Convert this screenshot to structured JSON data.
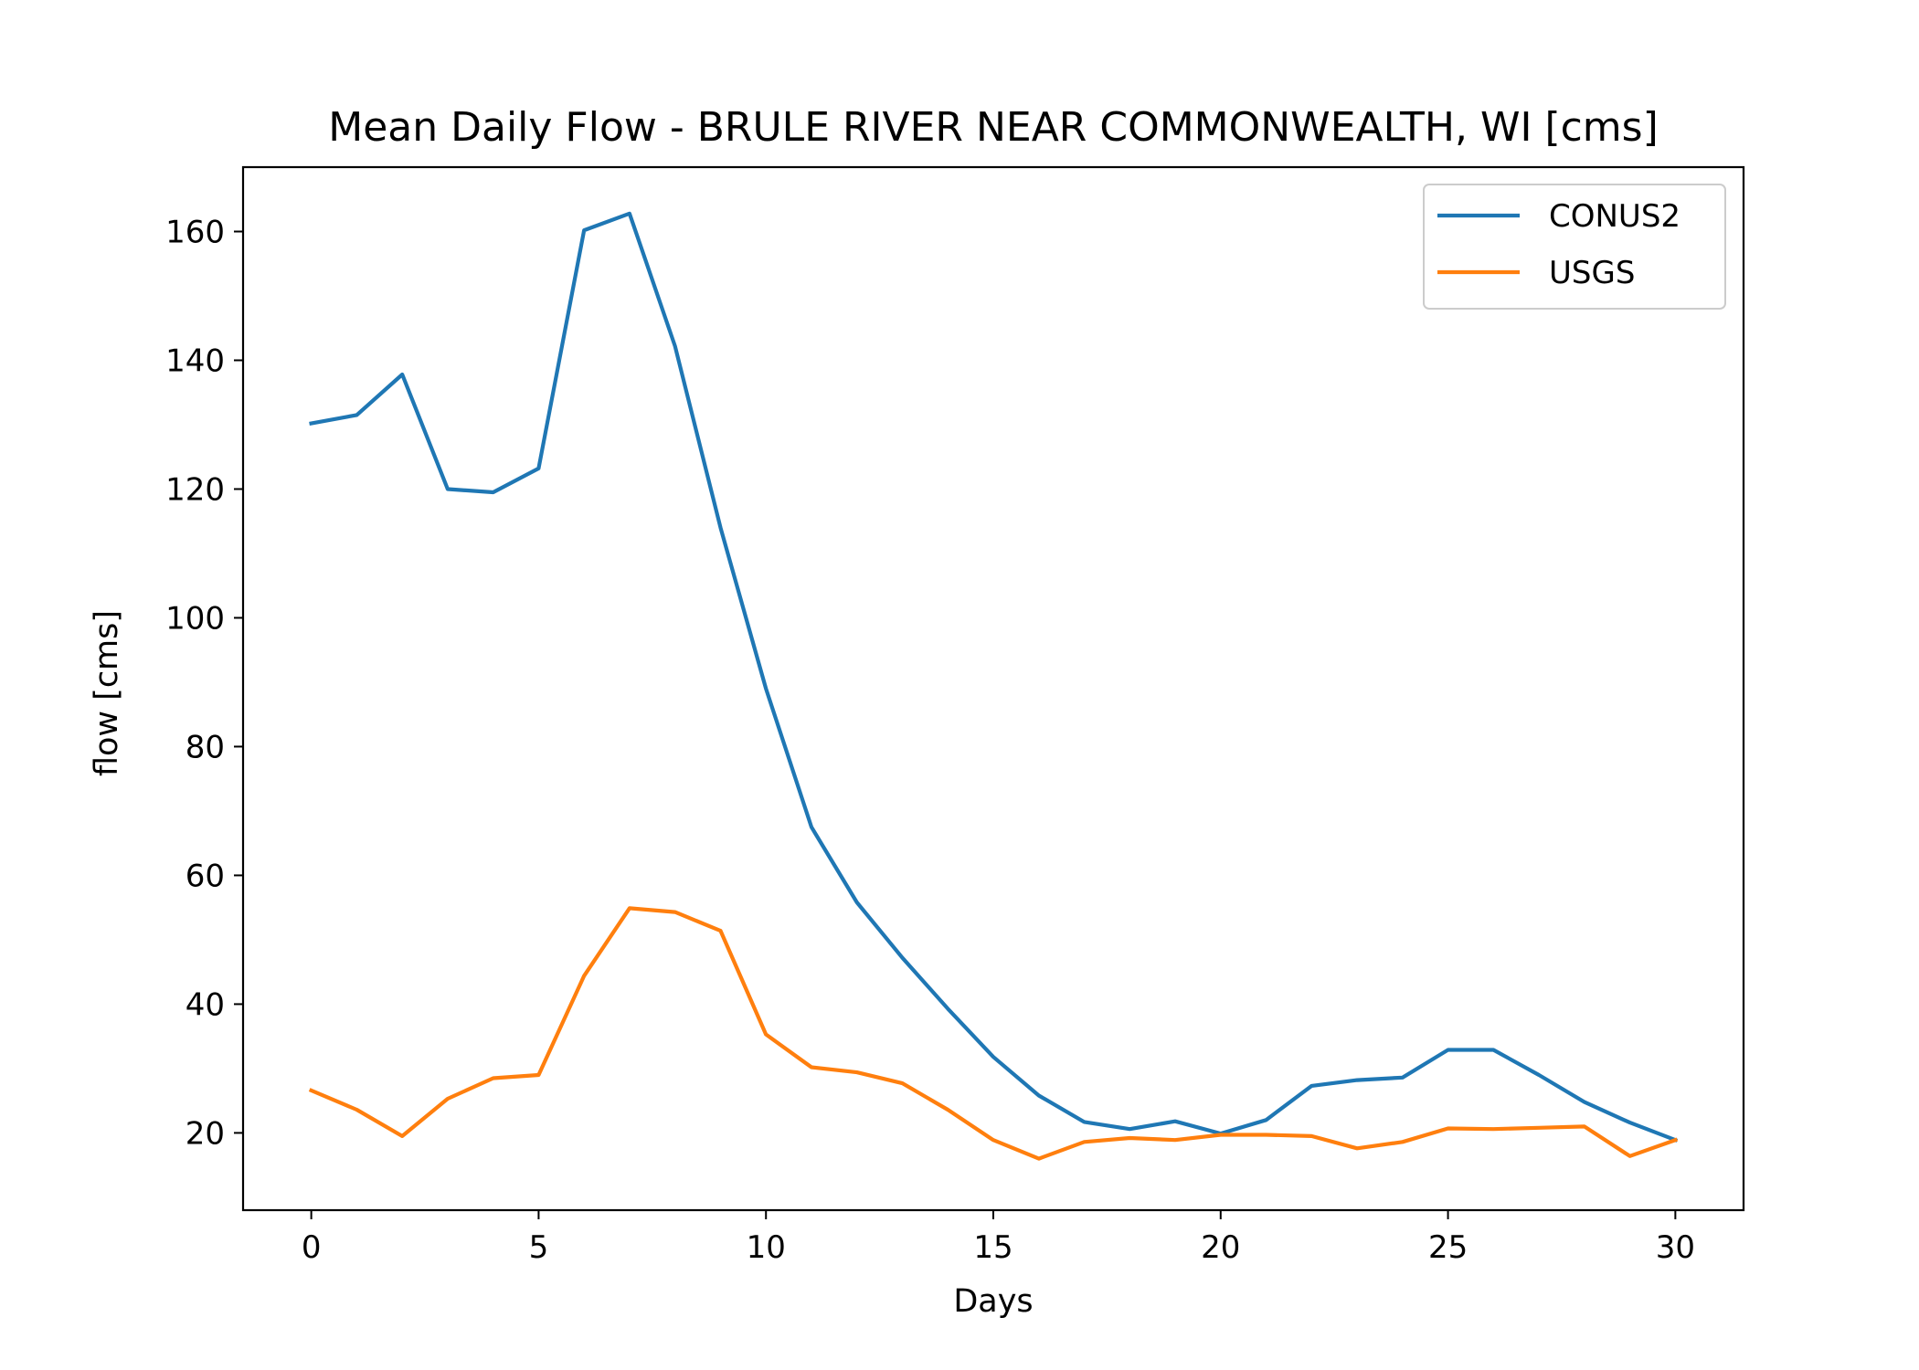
{
  "chart_data": {
    "type": "line",
    "title": "Mean Daily Flow - BRULE RIVER NEAR COMMONWEALTH, WI [cms]",
    "xlabel": "Days",
    "ylabel": "flow [cms]",
    "xlim": [
      -1.5,
      31.5
    ],
    "ylim": [
      8,
      170
    ],
    "xticks": [
      0,
      5,
      10,
      15,
      20,
      25,
      30
    ],
    "yticks": [
      20,
      40,
      60,
      80,
      100,
      120,
      140,
      160
    ],
    "grid": false,
    "legend_position": "top-right",
    "x": [
      0,
      1,
      2,
      3,
      4,
      5,
      6,
      7,
      8,
      9,
      10,
      11,
      12,
      13,
      14,
      15,
      16,
      17,
      18,
      19,
      20,
      21,
      22,
      23,
      24,
      25,
      26,
      27,
      28,
      29,
      30
    ],
    "series": [
      {
        "name": "CONUS2",
        "color": "#1f77b4",
        "values": [
          130.2,
          131.5,
          137.8,
          120.0,
          119.5,
          123.2,
          160.2,
          162.8,
          142.2,
          114.0,
          89.0,
          67.5,
          55.8,
          47.2,
          39.3,
          31.8,
          25.8,
          21.7,
          20.6,
          21.8,
          19.9,
          22.0,
          27.3,
          28.2,
          28.6,
          32.9,
          32.9,
          29.0,
          24.8,
          21.6,
          18.9
        ]
      },
      {
        "name": "USGS",
        "color": "#ff7f0e",
        "values": [
          26.6,
          23.6,
          19.5,
          25.3,
          28.5,
          29.0,
          44.4,
          54.9,
          54.3,
          51.4,
          35.3,
          30.2,
          29.4,
          27.7,
          23.6,
          18.9,
          16.0,
          18.6,
          19.2,
          18.9,
          19.7,
          19.7,
          19.5,
          17.6,
          18.6,
          20.7,
          20.6,
          20.8,
          21.0,
          16.4,
          18.9
        ]
      }
    ]
  }
}
